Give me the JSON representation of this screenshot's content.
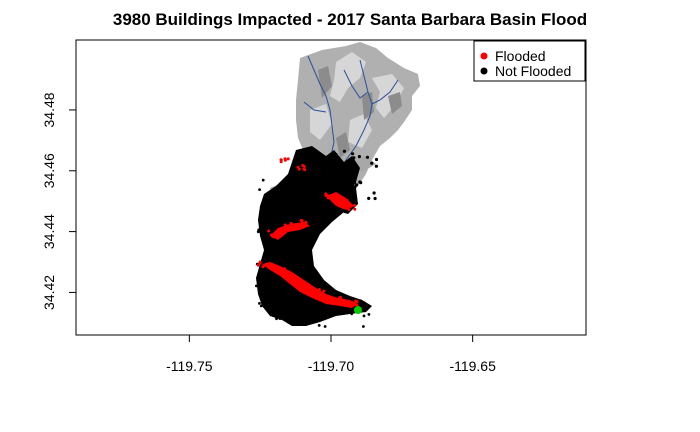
{
  "chart_data": {
    "type": "scatter",
    "title": "3980 Buildings Impacted - 2017 Santa Barbara Basin Flood",
    "xlabel": "",
    "ylabel": "",
    "xlim": [
      -119.79,
      -119.61
    ],
    "ylim": [
      34.406,
      34.503
    ],
    "x_ticks": [
      -119.75,
      -119.7,
      -119.65
    ],
    "x_tick_labels": [
      "-119.75",
      "-119.70",
      "-119.65"
    ],
    "y_ticks": [
      34.42,
      34.44,
      34.46,
      34.48
    ],
    "y_tick_labels": [
      "34.42",
      "34.44",
      "34.46",
      "34.48"
    ],
    "legend": {
      "position": "top-right",
      "entries": [
        {
          "label": "Flooded",
          "color": "#ff0000"
        },
        {
          "label": "Not Flooded",
          "color": "#000000"
        }
      ]
    },
    "colors": {
      "flooded": "#ff0000",
      "not_flooded": "#000000",
      "terrain": "#b0b0b0",
      "terrain_light": "#d6d6d6",
      "streams": "#2a4f9a",
      "outlet": "#00cc00"
    }
  }
}
